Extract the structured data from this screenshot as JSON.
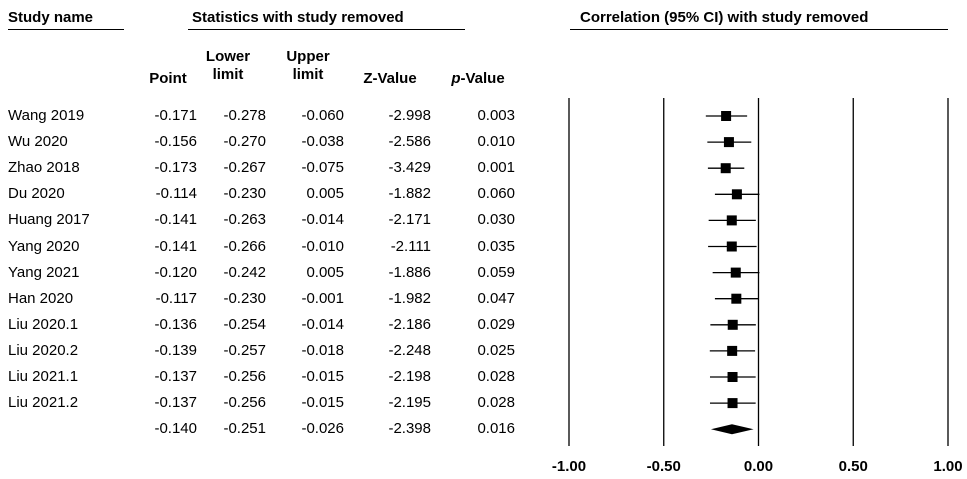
{
  "headers": {
    "study_name": "Study name",
    "stats": "Statistics with study removed",
    "correlation": "Correlation (95% CI) with study removed"
  },
  "columns": {
    "point": "Point",
    "lower": [
      "Lower",
      "limit"
    ],
    "upper": [
      "Upper",
      "limit"
    ],
    "z": "Z-Value",
    "p_prefix": "p",
    "p_suffix": "-Value"
  },
  "rows": [
    {
      "name": "Wang 2019",
      "point": "-0.171",
      "lower": "-0.278",
      "upper": "-0.060",
      "z": "-2.998",
      "p": "0.003"
    },
    {
      "name": "Wu 2020",
      "point": "-0.156",
      "lower": "-0.270",
      "upper": "-0.038",
      "z": "-2.586",
      "p": "0.010"
    },
    {
      "name": "Zhao 2018",
      "point": "-0.173",
      "lower": "-0.267",
      "upper": "-0.075",
      "z": "-3.429",
      "p": "0.001"
    },
    {
      "name": "Du 2020",
      "point": "-0.114",
      "lower": "-0.230",
      "upper": "0.005",
      "z": "-1.882",
      "p": "0.060"
    },
    {
      "name": "Huang 2017",
      "point": "-0.141",
      "lower": "-0.263",
      "upper": "-0.014",
      "z": "-2.171",
      "p": "0.030"
    },
    {
      "name": "Yang 2020",
      "point": "-0.141",
      "lower": "-0.266",
      "upper": "-0.010",
      "z": "-2.111",
      "p": "0.035"
    },
    {
      "name": "Yang 2021",
      "point": "-0.120",
      "lower": "-0.242",
      "upper": "0.005",
      "z": "-1.886",
      "p": "0.059"
    },
    {
      "name": "Han 2020",
      "point": "-0.117",
      "lower": "-0.230",
      "upper": "-0.001",
      "z": "-1.982",
      "p": "0.047"
    },
    {
      "name": "Liu 2020.1",
      "point": "-0.136",
      "lower": "-0.254",
      "upper": "-0.014",
      "z": "-2.186",
      "p": "0.029"
    },
    {
      "name": "Liu 2020.2",
      "point": "-0.139",
      "lower": "-0.257",
      "upper": "-0.018",
      "z": "-2.248",
      "p": "0.025"
    },
    {
      "name": "Liu 2021.1",
      "point": "-0.137",
      "lower": "-0.256",
      "upper": "-0.015",
      "z": "-2.198",
      "p": "0.028"
    },
    {
      "name": "Liu 2021.2",
      "point": "-0.137",
      "lower": "-0.256",
      "upper": "-0.015",
      "z": "-2.195",
      "p": "0.028"
    }
  ],
  "summary": {
    "name": "",
    "point": "-0.140",
    "lower": "-0.251",
    "upper": "-0.026",
    "z": "-2.398",
    "p": "0.016"
  },
  "chart_data": {
    "type": "forest",
    "x_ticks": [
      -1.0,
      -0.5,
      0.0,
      0.5,
      1.0
    ],
    "x_tick_labels": [
      "-1.00",
      "-0.50",
      "0.00",
      "0.50",
      "1.00"
    ],
    "xlim": [
      -1.0,
      1.0
    ],
    "grid": "vertical lines at ticks",
    "studies": [
      {
        "name": "Wang 2019",
        "point": -0.171,
        "lower": -0.278,
        "upper": -0.06
      },
      {
        "name": "Wu 2020",
        "point": -0.156,
        "lower": -0.27,
        "upper": -0.038
      },
      {
        "name": "Zhao 2018",
        "point": -0.173,
        "lower": -0.267,
        "upper": -0.075
      },
      {
        "name": "Du 2020",
        "point": -0.114,
        "lower": -0.23,
        "upper": 0.005
      },
      {
        "name": "Huang 2017",
        "point": -0.141,
        "lower": -0.263,
        "upper": -0.014
      },
      {
        "name": "Yang 2020",
        "point": -0.141,
        "lower": -0.266,
        "upper": -0.01
      },
      {
        "name": "Yang 2021",
        "point": -0.12,
        "lower": -0.242,
        "upper": 0.005
      },
      {
        "name": "Han 2020",
        "point": -0.117,
        "lower": -0.23,
        "upper": -0.001
      },
      {
        "name": "Liu 2020.1",
        "point": -0.136,
        "lower": -0.254,
        "upper": -0.014
      },
      {
        "name": "Liu 2020.2",
        "point": -0.139,
        "lower": -0.257,
        "upper": -0.018
      },
      {
        "name": "Liu 2021.1",
        "point": -0.137,
        "lower": -0.256,
        "upper": -0.015
      },
      {
        "name": "Liu 2021.2",
        "point": -0.137,
        "lower": -0.256,
        "upper": -0.015
      }
    ],
    "summary": {
      "point": -0.14,
      "lower": -0.251,
      "upper": -0.026
    }
  }
}
